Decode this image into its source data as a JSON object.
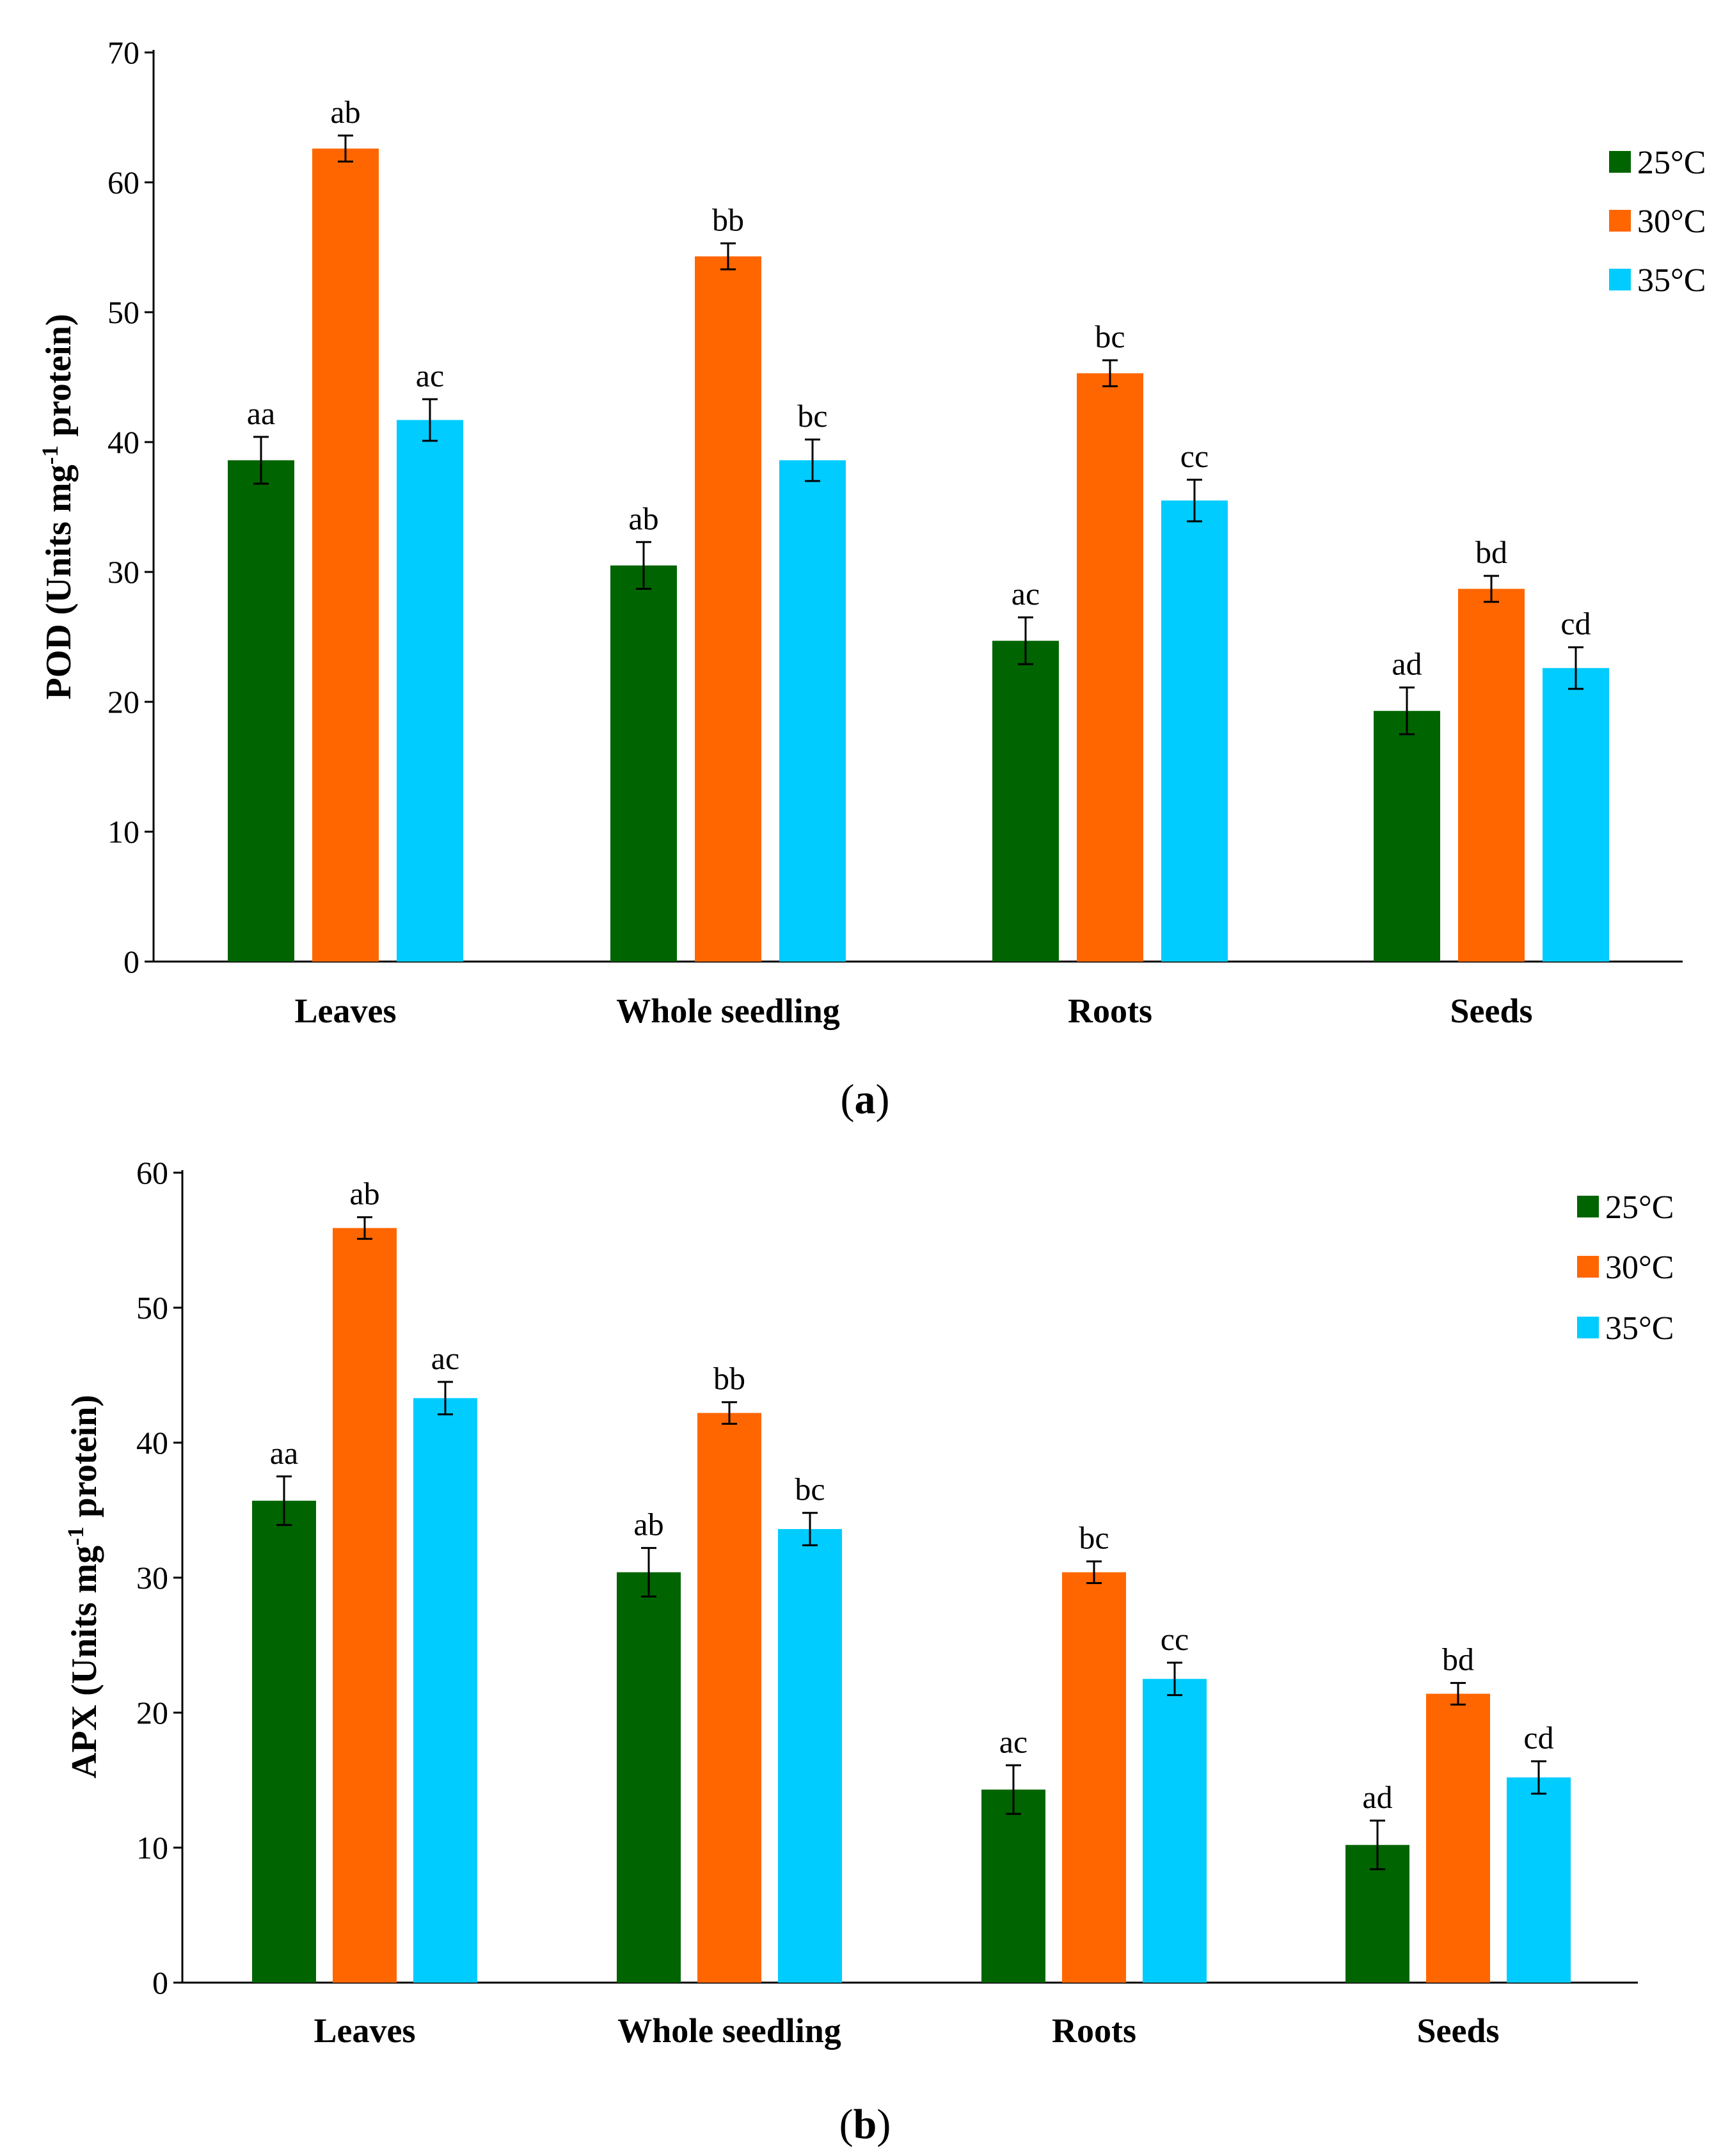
{
  "colors": {
    "25": "#006400",
    "30": "#ff6600",
    "35": "#00ccff",
    "axis": "#000000"
  },
  "chart_data": [
    {
      "type": "bar",
      "panel_label": "(a)",
      "panel_letter": "a",
      "ylabel": {
        "pre": "POD  (Units mg",
        "sup": "-1",
        "post": " protein)"
      },
      "ylim": [
        0,
        70
      ],
      "yticks": [
        0,
        10,
        20,
        30,
        40,
        50,
        60,
        70
      ],
      "categories": [
        "Leaves",
        "Whole seedling",
        "Roots",
        "Seeds"
      ],
      "legend": [
        "25°C",
        "30°C",
        "35°C"
      ],
      "legend_position": "top-right",
      "series": [
        {
          "name": "25°C",
          "values": [
            38.6,
            30.5,
            24.7,
            19.3
          ],
          "errors": [
            1.8,
            1.8,
            1.8,
            1.8
          ],
          "labels": [
            "aa",
            "ab",
            "ac",
            "ad"
          ]
        },
        {
          "name": "30°C",
          "values": [
            62.6,
            54.3,
            45.3,
            28.7
          ],
          "errors": [
            1.0,
            1.0,
            1.0,
            1.0
          ],
          "labels": [
            "ab",
            "bb",
            "bc",
            "bd"
          ]
        },
        {
          "name": "35°C",
          "values": [
            41.7,
            38.6,
            35.5,
            22.6
          ],
          "errors": [
            1.6,
            1.6,
            1.6,
            1.6
          ],
          "labels": [
            "ac",
            "bc",
            "cc",
            "cd"
          ]
        }
      ]
    },
    {
      "type": "bar",
      "panel_label": "(b)",
      "panel_letter": "b",
      "ylabel": {
        "pre": "APX  (Units mg",
        "sup": "-1",
        "post": " protein)"
      },
      "ylim": [
        0,
        60
      ],
      "yticks": [
        0,
        10,
        20,
        30,
        40,
        50,
        60
      ],
      "categories": [
        "Leaves",
        "Whole seedling",
        "Roots",
        "Seeds"
      ],
      "legend": [
        "25°C",
        "30°C",
        "35°C"
      ],
      "legend_position": "top-right",
      "series": [
        {
          "name": "25°C",
          "values": [
            35.7,
            30.4,
            14.3,
            10.2
          ],
          "errors": [
            1.8,
            1.8,
            1.8,
            1.8
          ],
          "labels": [
            "aa",
            "ab",
            "ac",
            "ad"
          ]
        },
        {
          "name": "30°C",
          "values": [
            55.9,
            42.2,
            30.4,
            21.4
          ],
          "errors": [
            0.8,
            0.8,
            0.8,
            0.8
          ],
          "labels": [
            "ab",
            "bb",
            "bc",
            "bd"
          ]
        },
        {
          "name": "35°C",
          "values": [
            43.3,
            33.6,
            22.5,
            15.2
          ],
          "errors": [
            1.2,
            1.2,
            1.2,
            1.2
          ],
          "labels": [
            "ac",
            "bc",
            "cc",
            "cd"
          ]
        }
      ]
    }
  ]
}
